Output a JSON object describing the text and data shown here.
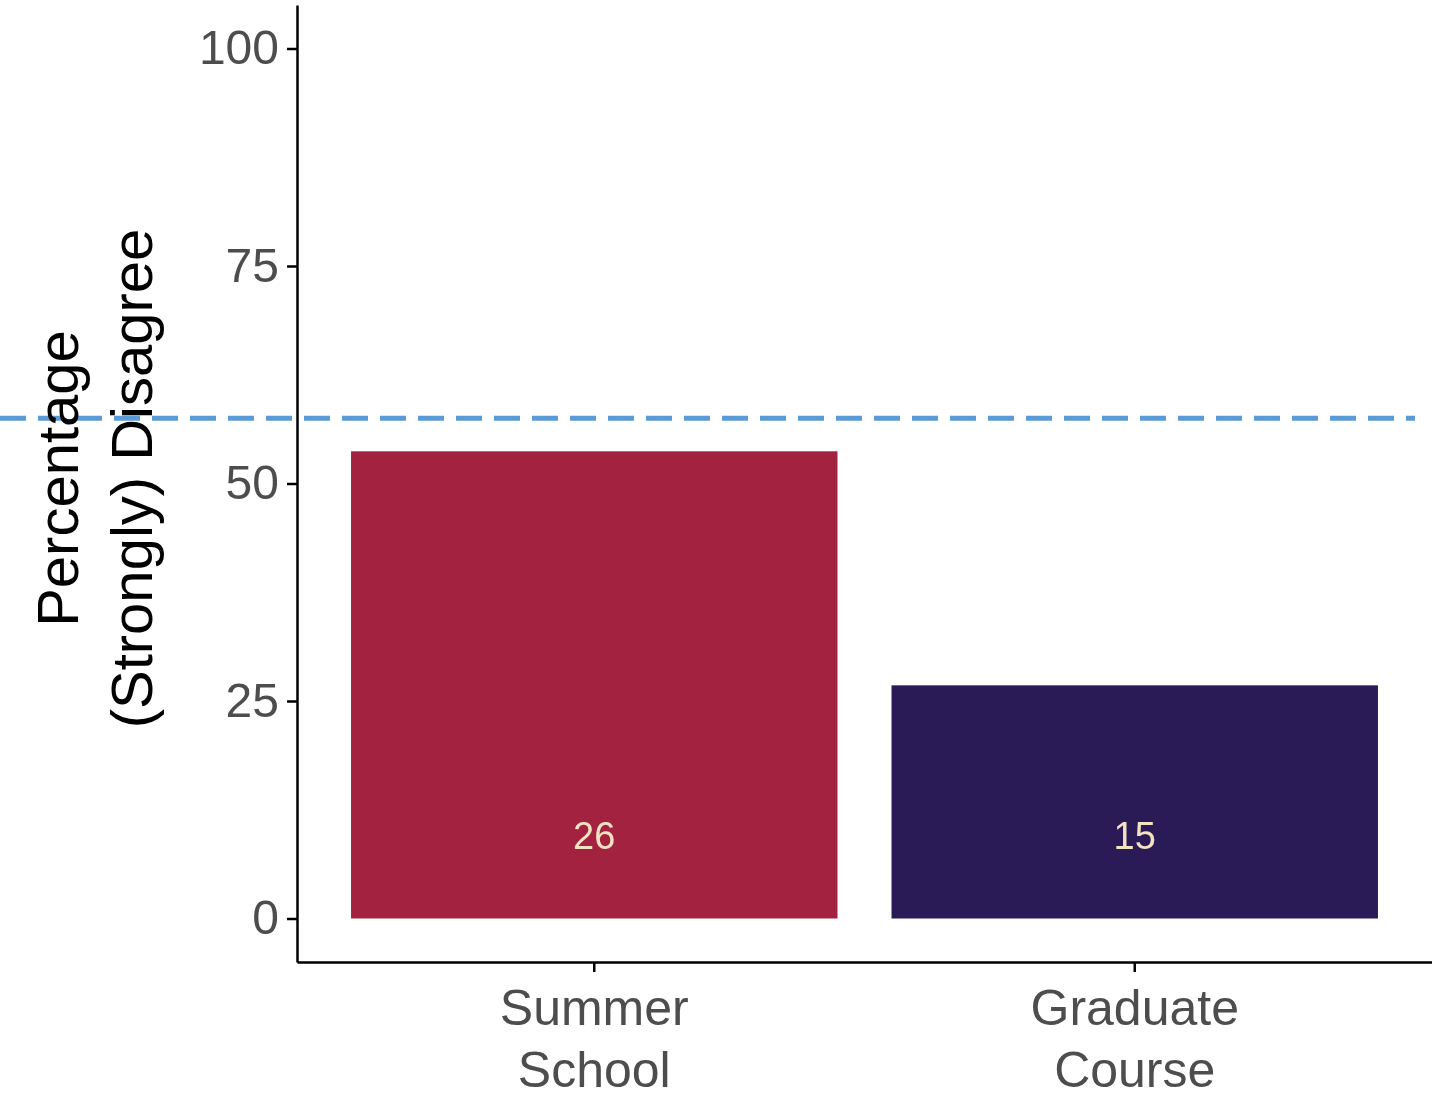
{
  "chart_data": {
    "type": "bar",
    "ylabel": "Percentage\n(Strongly) Disagree",
    "categories": [
      "Summer\nSchool",
      "Graduate\nCourse"
    ],
    "values": [
      53.7,
      26.8
    ],
    "colors": [
      "#a3223f",
      "#2a1b57"
    ],
    "annotations": [
      "26",
      "15"
    ],
    "ylim": [
      -5,
      105
    ],
    "yticks": [
      0,
      25,
      50,
      75,
      100
    ],
    "grid": false,
    "ref_lines": [
      {
        "axis": "y",
        "value": 57.5,
        "color": "#5b9bd5",
        "line_style": "dashed"
      }
    ]
  }
}
